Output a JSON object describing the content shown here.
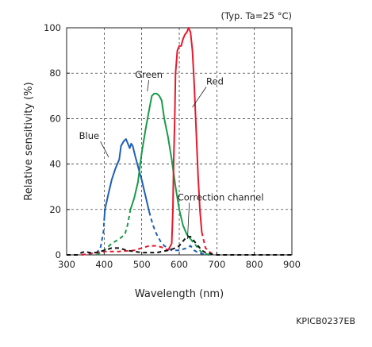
{
  "chart_data": {
    "type": "line",
    "note": "(Typ. Ta=25 °C)",
    "xlabel": "Wavelength (nm)",
    "ylabel": "Relative sensitivity (%)",
    "xlim": [
      300,
      900
    ],
    "ylim": [
      0,
      100
    ],
    "xticks": [
      300,
      400,
      500,
      600,
      700,
      800,
      900
    ],
    "yticks": [
      0,
      20,
      40,
      60,
      80,
      100
    ],
    "grid": true,
    "series": [
      {
        "name": "Blue",
        "color": "#1f5fb4",
        "solid_range": [
          400,
          520
        ],
        "points": [
          [
            340,
            0
          ],
          [
            360,
            0.5
          ],
          [
            380,
            1
          ],
          [
            390,
            3
          ],
          [
            398,
            10
          ],
          [
            402,
            20
          ],
          [
            410,
            26
          ],
          [
            420,
            33
          ],
          [
            430,
            38
          ],
          [
            440,
            42
          ],
          [
            445,
            48
          ],
          [
            452,
            50
          ],
          [
            458,
            51
          ],
          [
            463,
            49
          ],
          [
            468,
            47
          ],
          [
            472,
            49
          ],
          [
            476,
            48
          ],
          [
            482,
            44
          ],
          [
            490,
            39
          ],
          [
            500,
            33
          ],
          [
            510,
            26
          ],
          [
            520,
            19
          ],
          [
            530,
            13
          ],
          [
            540,
            9
          ],
          [
            550,
            6
          ],
          [
            560,
            4
          ],
          [
            570,
            3
          ],
          [
            580,
            2
          ],
          [
            600,
            2
          ],
          [
            620,
            3
          ],
          [
            630,
            4
          ],
          [
            640,
            2
          ],
          [
            650,
            1
          ],
          [
            660,
            0.5
          ],
          [
            680,
            0
          ]
        ]
      },
      {
        "name": "Green",
        "color": "#1a9a4a",
        "solid_range": [
          470,
          630
        ],
        "points": [
          [
            380,
            0
          ],
          [
            400,
            2
          ],
          [
            420,
            5
          ],
          [
            440,
            7
          ],
          [
            455,
            9
          ],
          [
            462,
            13
          ],
          [
            470,
            20
          ],
          [
            480,
            25
          ],
          [
            490,
            32
          ],
          [
            500,
            45
          ],
          [
            510,
            55
          ],
          [
            520,
            64
          ],
          [
            527,
            70
          ],
          [
            533,
            71
          ],
          [
            540,
            71
          ],
          [
            547,
            70
          ],
          [
            553,
            68
          ],
          [
            560,
            60
          ],
          [
            570,
            52
          ],
          [
            580,
            42
          ],
          [
            590,
            30
          ],
          [
            600,
            20
          ],
          [
            610,
            13
          ],
          [
            620,
            9
          ],
          [
            630,
            7
          ],
          [
            640,
            5
          ],
          [
            650,
            3
          ],
          [
            660,
            1
          ],
          [
            680,
            0
          ]
        ]
      },
      {
        "name": "Red",
        "color": "#e8192c",
        "solid_range": [
          570,
          660
        ],
        "points": [
          [
            340,
            0
          ],
          [
            360,
            0.5
          ],
          [
            380,
            1
          ],
          [
            400,
            1.5
          ],
          [
            440,
            1.5
          ],
          [
            480,
            2
          ],
          [
            500,
            3
          ],
          [
            520,
            4
          ],
          [
            540,
            4
          ],
          [
            560,
            3
          ],
          [
            570,
            2
          ],
          [
            580,
            5
          ],
          [
            583,
            20
          ],
          [
            585,
            40
          ],
          [
            588,
            60
          ],
          [
            590,
            80
          ],
          [
            595,
            90
          ],
          [
            600,
            92
          ],
          [
            605,
            92
          ],
          [
            610,
            95
          ],
          [
            615,
            97
          ],
          [
            620,
            98
          ],
          [
            625,
            100
          ],
          [
            630,
            98
          ],
          [
            635,
            90
          ],
          [
            640,
            75
          ],
          [
            645,
            55
          ],
          [
            650,
            35
          ],
          [
            655,
            20
          ],
          [
            660,
            10
          ],
          [
            670,
            3
          ],
          [
            690,
            0
          ]
        ]
      },
      {
        "name": "Correction channel",
        "color": "#111111",
        "solid_range": null,
        "points": [
          [
            300,
            0
          ],
          [
            330,
            0
          ],
          [
            340,
            1
          ],
          [
            350,
            1.5
          ],
          [
            360,
            1
          ],
          [
            380,
            1
          ],
          [
            400,
            2
          ],
          [
            420,
            3
          ],
          [
            440,
            3
          ],
          [
            460,
            2
          ],
          [
            480,
            1.5
          ],
          [
            500,
            1
          ],
          [
            540,
            1
          ],
          [
            570,
            2
          ],
          [
            590,
            3
          ],
          [
            600,
            4
          ],
          [
            610,
            6
          ],
          [
            620,
            8
          ],
          [
            630,
            8
          ],
          [
            640,
            6
          ],
          [
            650,
            4
          ],
          [
            660,
            2
          ],
          [
            670,
            1
          ],
          [
            700,
            0
          ],
          [
            900,
            0
          ]
        ]
      }
    ],
    "annotations": [
      {
        "label": "Green",
        "text_pos": [
          519,
          78
        ],
        "arrow_to": [
          515,
          72
        ]
      },
      {
        "label": "Red",
        "text_pos": [
          695,
          75
        ],
        "arrow_to": [
          635,
          65
        ]
      },
      {
        "label": "Blue",
        "text_pos": [
          360,
          51
        ],
        "arrow_to": [
          412,
          43
        ]
      },
      {
        "label": "Correction channel",
        "text_pos": [
          710,
          24
        ],
        "arrow_to": [
          622,
          7
        ]
      }
    ]
  },
  "footer_code": "KPICB0237EB"
}
